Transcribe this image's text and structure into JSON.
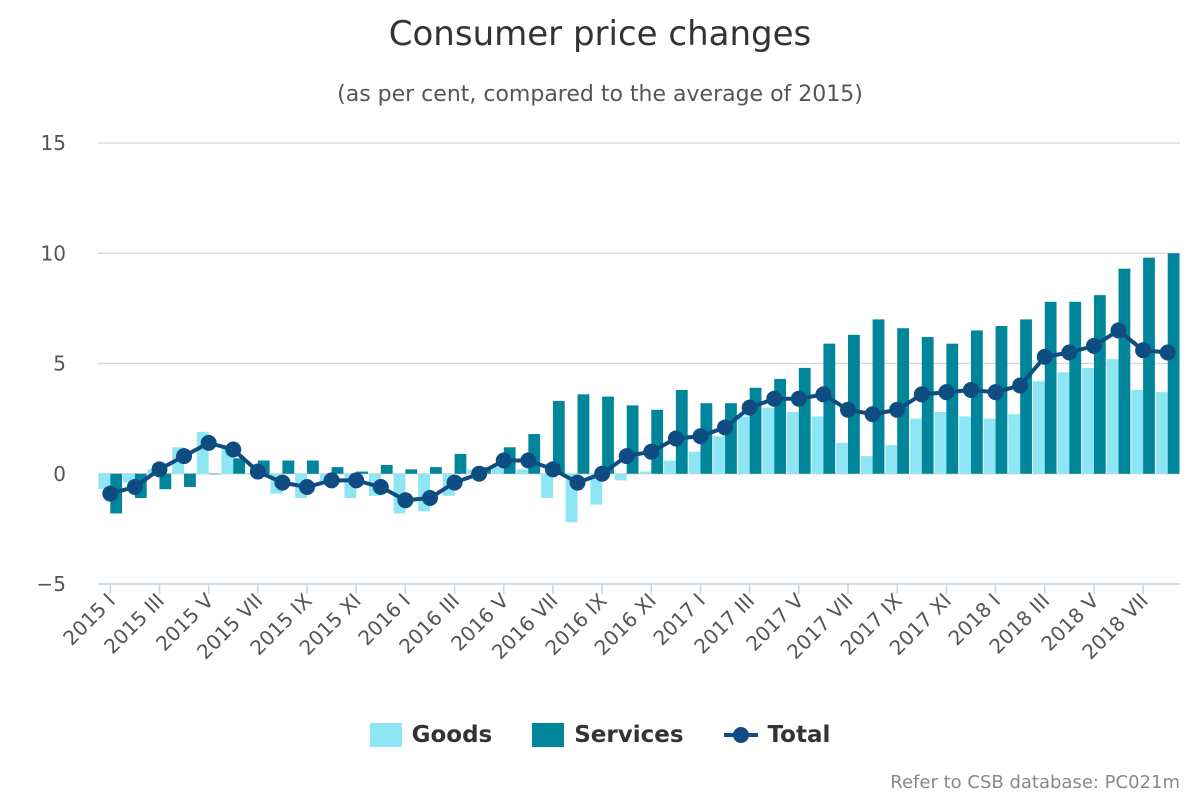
{
  "chart_data": {
    "type": "bar",
    "title": "Consumer price changes",
    "subtitle": "(as per cent, compared to the average of 2015)",
    "ylim": [
      -5,
      15
    ],
    "yticks": [
      15,
      10,
      5,
      0,
      "−5"
    ],
    "grid": true,
    "categories": [
      "2015 I",
      "2015 II",
      "2015 III",
      "2015 IV",
      "2015 V",
      "2015 VI",
      "2015 VII",
      "2015 VIII",
      "2015 IX",
      "2015 X",
      "2015 XI",
      "2015 XII",
      "2016 I",
      "2016 II",
      "2016 III",
      "2016 IV",
      "2016 V",
      "2016 VI",
      "2016 VII",
      "2016 VIII",
      "2016 IX",
      "2016 X",
      "2016 XI",
      "2016 XII",
      "2017 I",
      "2017 II",
      "2017 III",
      "2017 IV",
      "2017 V",
      "2017 VI",
      "2017 VII",
      "2017 VIII",
      "2017 IX",
      "2017 X",
      "2017 XI",
      "2017 XII",
      "2018 I",
      "2018 II",
      "2018 III",
      "2018 IV",
      "2018 V",
      "2018 VI",
      "2018 VII",
      "2018 VIII"
    ],
    "xtick_labels": [
      "2015 I",
      "2015 III",
      "2015 V",
      "2015 VII",
      "2015 IX",
      "2015 XI",
      "2016 I",
      "2016 III",
      "2016 V",
      "2016 VII",
      "2016 IX",
      "2016 XI",
      "2017 I",
      "2017 III",
      "2017 V",
      "2017 VII",
      "2017 IX",
      "2017 XI",
      "2018 I",
      "2018 III",
      "2018 V",
      "2018 VII"
    ],
    "series": [
      {
        "name": "Goods",
        "type": "bar",
        "color": "#8ee6f5",
        "values": [
          -0.7,
          -0.4,
          0.2,
          1.2,
          1.9,
          1.2,
          0.0,
          -0.9,
          -1.1,
          -0.4,
          -1.1,
          -1.0,
          -1.8,
          -1.7,
          -1.0,
          0.2,
          0.3,
          0.2,
          -1.1,
          -2.2,
          -1.4,
          -0.3,
          0.1,
          0.6,
          1.0,
          1.7,
          2.6,
          3.0,
          2.8,
          2.6,
          1.4,
          0.8,
          1.3,
          2.5,
          2.8,
          2.6,
          2.5,
          2.7,
          4.2,
          4.6,
          4.8,
          5.2,
          3.8,
          3.7
        ]
      },
      {
        "name": "Services",
        "type": "bar",
        "color": "#00869a",
        "values": [
          -1.8,
          -1.1,
          -0.7,
          -0.6,
          0.0,
          0.7,
          0.6,
          0.6,
          0.6,
          0.3,
          0.1,
          0.4,
          0.2,
          0.3,
          0.9,
          0.3,
          1.2,
          1.8,
          3.3,
          3.6,
          3.5,
          3.1,
          2.9,
          3.8,
          3.2,
          3.2,
          3.9,
          4.3,
          4.8,
          5.9,
          6.3,
          7.0,
          6.6,
          6.2,
          5.9,
          6.5,
          6.7,
          7.0,
          7.8,
          7.8,
          8.1,
          9.3,
          9.8,
          10.0
        ]
      },
      {
        "name": "Total",
        "type": "line",
        "color": "#0f4c81",
        "values": [
          -0.9,
          -0.6,
          0.2,
          0.8,
          1.4,
          1.1,
          0.1,
          -0.4,
          -0.6,
          -0.3,
          -0.3,
          -0.6,
          -1.2,
          -1.1,
          -0.4,
          0.0,
          0.6,
          0.6,
          0.2,
          -0.4,
          0.0,
          0.8,
          1.0,
          1.6,
          1.7,
          2.1,
          3.0,
          3.4,
          3.4,
          3.6,
          2.9,
          2.7,
          2.9,
          3.6,
          3.7,
          3.8,
          3.7,
          4.0,
          5.3,
          5.5,
          5.8,
          6.5,
          5.6,
          5.5
        ]
      }
    ],
    "legend_position": "bottom"
  },
  "footnote": "Refer to CSB database: PC021m"
}
